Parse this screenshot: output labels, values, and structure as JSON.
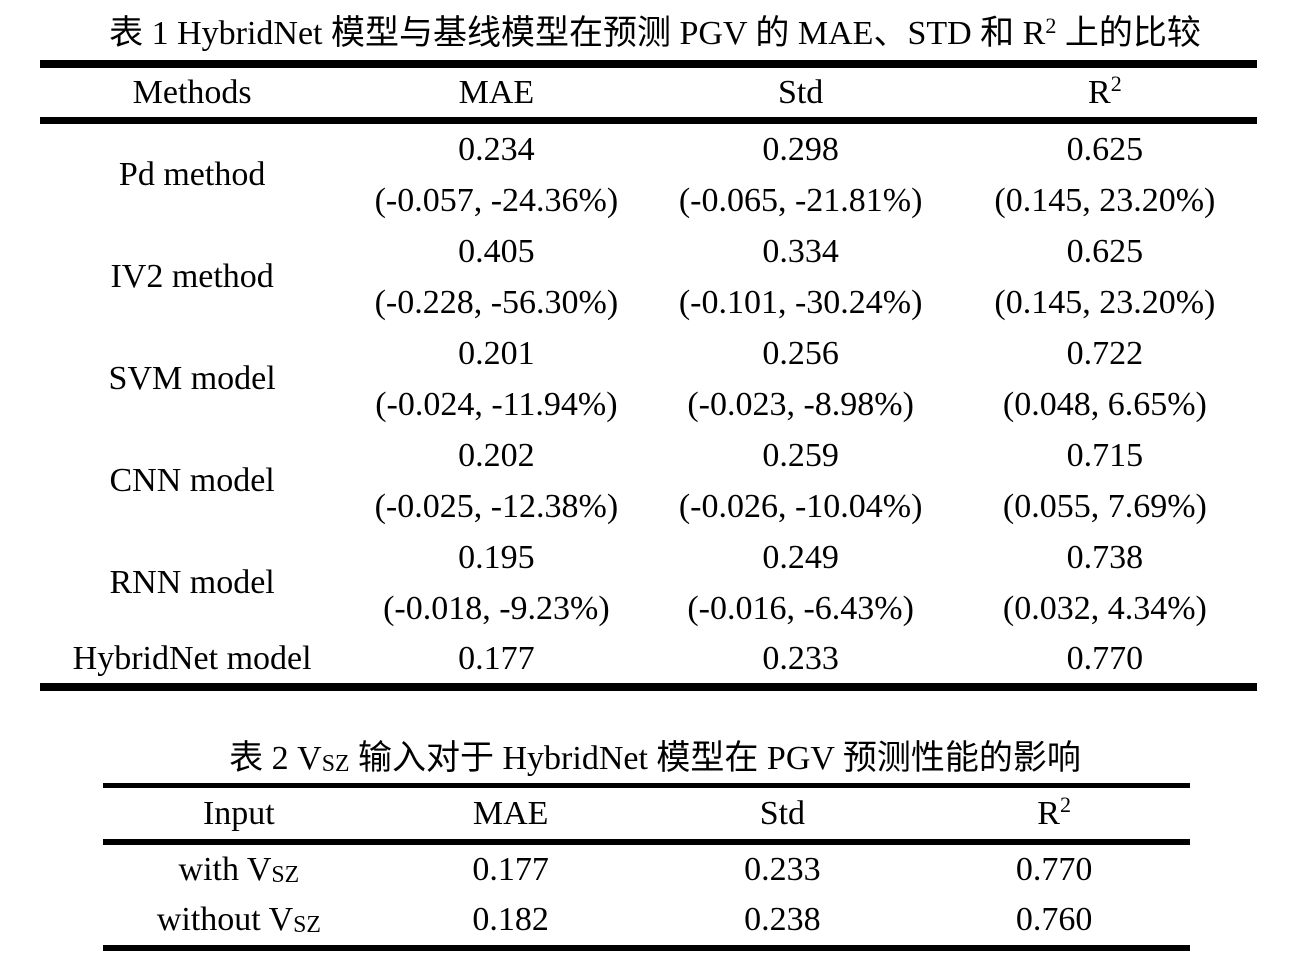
{
  "table1": {
    "title": {
      "pre": "表 1 HybridNet 模型与基线模型在预测 PGV 的 MAE、STD 和 R",
      "sup": "2",
      "post": " 上的比较"
    },
    "headers": {
      "methods": "Methods",
      "mae": "MAE",
      "std": "Std",
      "r2_base": "R",
      "r2_sup": "2"
    },
    "rows": [
      {
        "method": "Pd method",
        "mae": "0.234",
        "mae_delta": "(-0.057, -24.36%)",
        "std": "0.298",
        "std_delta": "(-0.065, -21.81%)",
        "r2": "0.625",
        "r2_delta": "(0.145, 23.20%)"
      },
      {
        "method": "IV2 method",
        "mae": "0.405",
        "mae_delta": "(-0.228, -56.30%)",
        "std": "0.334",
        "std_delta": "(-0.101, -30.24%)",
        "r2": "0.625",
        "r2_delta": "(0.145, 23.20%)"
      },
      {
        "method": "SVM model",
        "mae": "0.201",
        "mae_delta": "(-0.024, -11.94%)",
        "std": "0.256",
        "std_delta": "(-0.023, -8.98%)",
        "r2": "0.722",
        "r2_delta": "(0.048, 6.65%)"
      },
      {
        "method": "CNN model",
        "mae": "0.202",
        "mae_delta": "(-0.025, -12.38%)",
        "std": "0.259",
        "std_delta": "(-0.026, -10.04%)",
        "r2": "0.715",
        "r2_delta": "(0.055, 7.69%)"
      },
      {
        "method": "RNN model",
        "mae": "0.195",
        "mae_delta": "(-0.018, -9.23%)",
        "std": "0.249",
        "std_delta": "(-0.016, -6.43%)",
        "r2": "0.738",
        "r2_delta": "(0.032, 4.34%)"
      }
    ],
    "final_row": {
      "method": "HybridNet model",
      "mae": "0.177",
      "std": "0.233",
      "r2": "0.770"
    }
  },
  "table2": {
    "title": {
      "pre": "表 2 V",
      "sub": "SZ",
      "post": " 输入对于 HybridNet 模型在 PGV 预测性能的影响"
    },
    "headers": {
      "input": "Input",
      "mae": "MAE",
      "std": "Std",
      "r2_base": "R",
      "r2_sup": "2"
    },
    "rows": [
      {
        "input_pre": "with V",
        "input_sub": "SZ",
        "mae": "0.177",
        "std": "0.233",
        "r2": "0.770"
      },
      {
        "input_pre": "without V",
        "input_sub": "SZ",
        "mae": "0.182",
        "std": "0.238",
        "r2": "0.760"
      }
    ]
  }
}
